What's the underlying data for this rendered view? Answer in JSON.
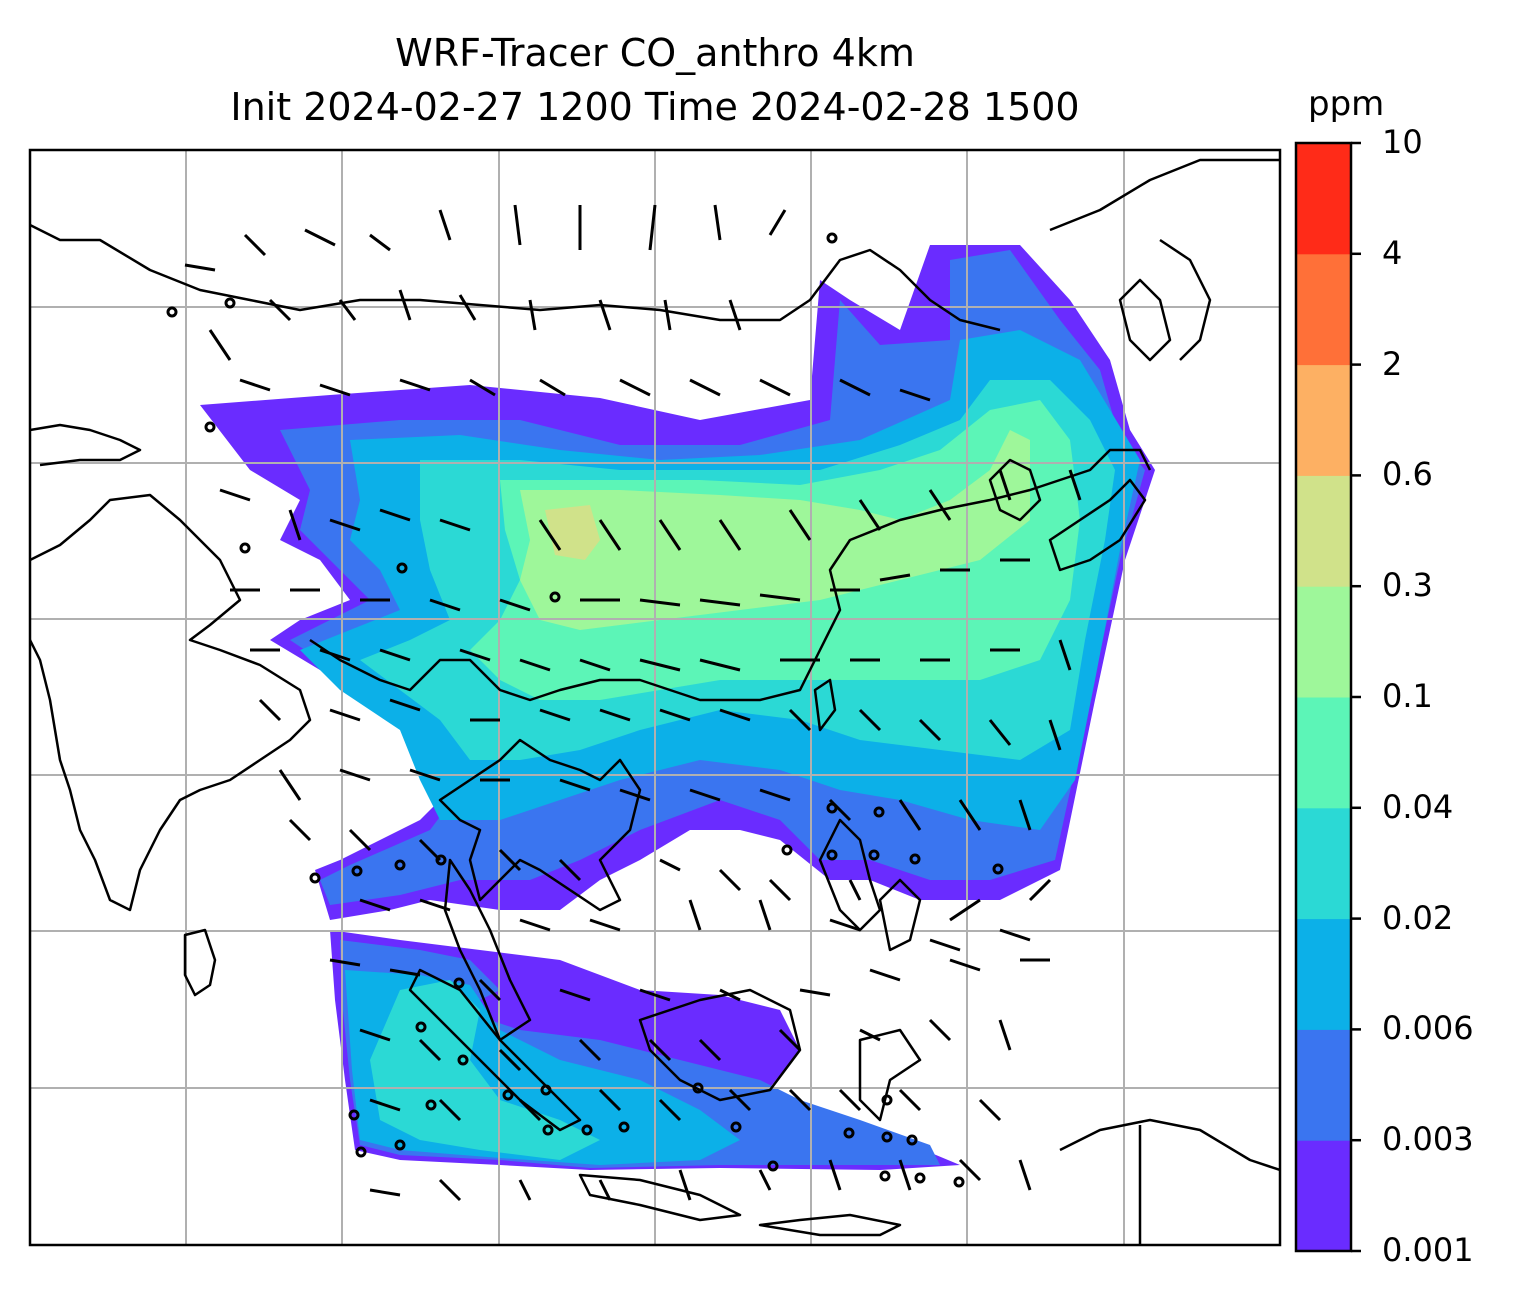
{
  "title_line1": "WRF-Tracer CO_anthro 4km",
  "title_line2": "Init 2024-02-27 1200 Time 2024-02-28 1500",
  "colorbar": {
    "units": "ppm",
    "levels": [
      "0.001",
      "0.003",
      "0.006",
      "0.02",
      "0.04",
      "0.1",
      "0.3",
      "0.6",
      "2",
      "4",
      "10"
    ],
    "colors": [
      "#6a2cff",
      "#3a75f0",
      "#0cb0e8",
      "#2bd9d5",
      "#5cf5b7",
      "#9ef79a",
      "#d0e28a",
      "#fdb063",
      "#ff7038",
      "#ff2b18"
    ]
  },
  "map": {
    "background": "#ffffff",
    "grid_color": "#b0b0b0",
    "coastline_color": "#000000"
  }
}
